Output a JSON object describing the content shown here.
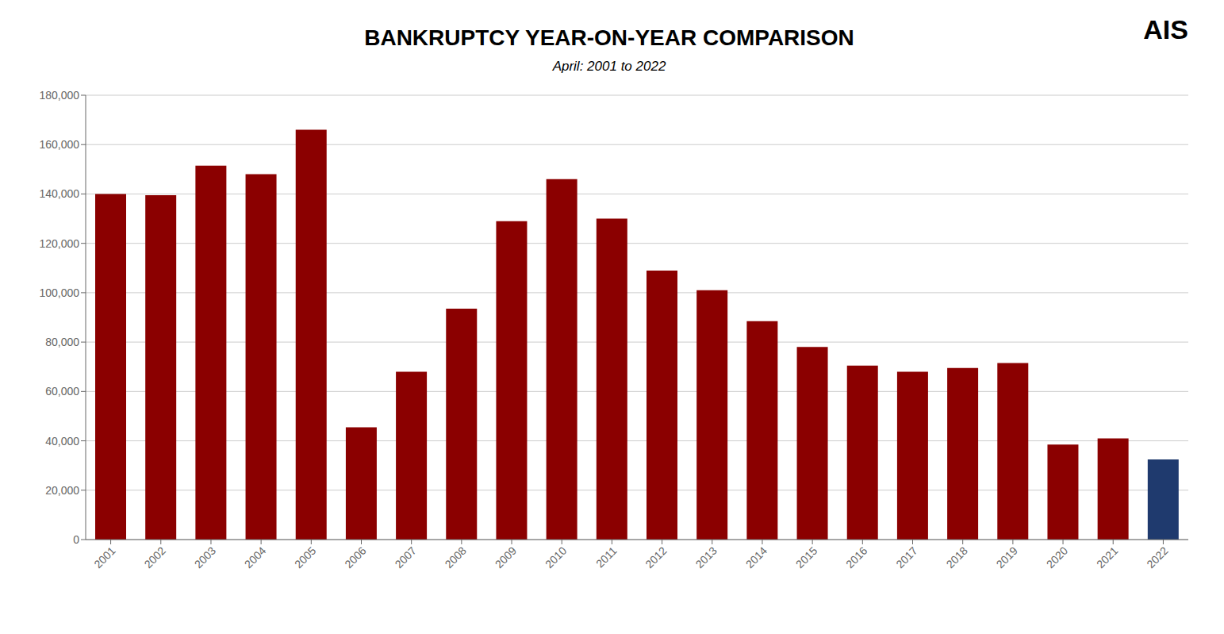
{
  "chart_data": {
    "type": "bar",
    "title": "BANKRUPTCY YEAR-ON-YEAR COMPARISON",
    "subtitle": "April: 2001 to 2022",
    "annotations": [
      "AIS"
    ],
    "categories": [
      "2001",
      "2002",
      "2003",
      "2004",
      "2005",
      "2006",
      "2007",
      "2008",
      "2009",
      "2010",
      "2011",
      "2012",
      "2013",
      "2014",
      "2015",
      "2016",
      "2017",
      "2018",
      "2019",
      "2020",
      "2021",
      "2022"
    ],
    "values": [
      140000,
      139500,
      151500,
      148000,
      166000,
      45500,
      68000,
      93500,
      129000,
      146000,
      130000,
      109000,
      101000,
      88500,
      78000,
      70500,
      68000,
      69500,
      71500,
      38500,
      41000,
      32500
    ],
    "colors": [
      "#8B0000",
      "#8B0000",
      "#8B0000",
      "#8B0000",
      "#8B0000",
      "#8B0000",
      "#8B0000",
      "#8B0000",
      "#8B0000",
      "#8B0000",
      "#8B0000",
      "#8B0000",
      "#8B0000",
      "#8B0000",
      "#8B0000",
      "#8B0000",
      "#8B0000",
      "#8B0000",
      "#8B0000",
      "#8B0000",
      "#8B0000",
      "#1F3A6E"
    ],
    "ylim": [
      0,
      180000
    ],
    "yticks": [
      0,
      {
        "value": 20000,
        "label": "20,000"
      },
      {
        "value": 40000,
        "label": "40,000"
      },
      {
        "value": 60000,
        "label": "60,000"
      },
      {
        "value": 80000,
        "label": "80,000"
      },
      {
        "value": 100000,
        "label": "100,000"
      },
      {
        "value": 120000,
        "label": "120,000"
      },
      {
        "value": 140000,
        "label": "140,000"
      },
      {
        "value": 160000,
        "label": "160,000"
      },
      {
        "value": 180000,
        "label": "180,000"
      }
    ],
    "grid": true
  }
}
